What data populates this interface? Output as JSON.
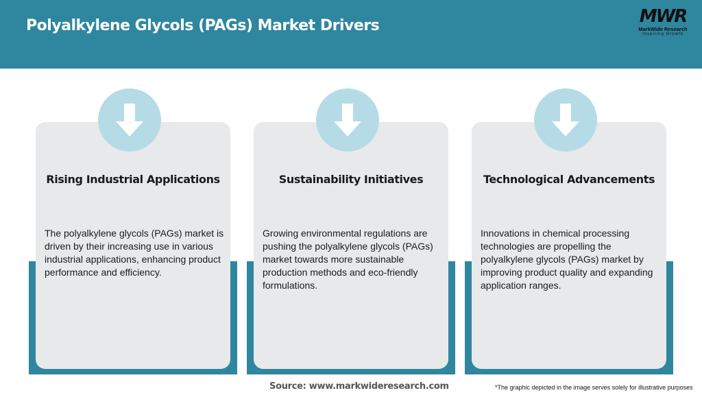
{
  "header": {
    "title": "Polyalkylene Glycols (PAGs) Market Drivers"
  },
  "logo": {
    "mark": "MWR",
    "name": "MarkWide Research",
    "tagline": "Inspiring Growth"
  },
  "colors": {
    "header": "#2f869f",
    "card": "#e8e9ea",
    "circle": "#b5dce6"
  },
  "cards": [
    {
      "icon": "arrow-down-icon",
      "title": "Rising Industrial Applications",
      "text": "The polyalkylene glycols (PAGs) market is driven by their increasing use in various industrial applications, enhancing product performance and efficiency."
    },
    {
      "icon": "arrow-down-icon",
      "title": "Sustainability Initiatives",
      "text": "Growing environmental regulations are pushing the polyalkylene glycols (PAGs) market towards more sustainable production methods and eco-friendly formulations."
    },
    {
      "icon": "arrow-down-icon",
      "title": "Technological Advancements",
      "text": "Innovations in chemical processing technologies are propelling the polyalkylene glycols (PAGs) market by improving product quality and expanding application ranges."
    }
  ],
  "footer": {
    "source": "Source: www.markwideresearch.com",
    "note": "*The graphic depicted in the image serves solely for illustrative purposes"
  }
}
